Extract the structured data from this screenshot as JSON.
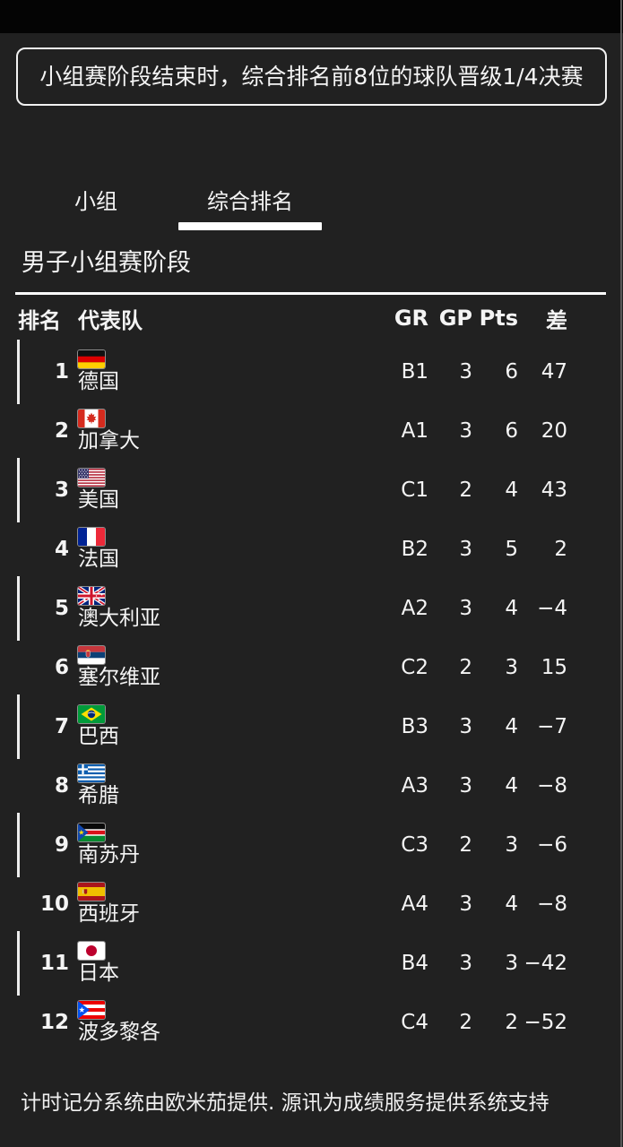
{
  "notice": {
    "text": "小组赛阶段结束时，综合排名前8位的球队晋级1/4决赛"
  },
  "tabs": [
    {
      "label": "小组",
      "active": false
    },
    {
      "label": "综合排名",
      "active": true
    }
  ],
  "section_title": "男子小组赛阶段",
  "table": {
    "headers": {
      "rank": "排名",
      "team": "代表队",
      "gr": "GR",
      "gp": "GP",
      "pts": "Pts",
      "diff": "差"
    },
    "rows": [
      {
        "rank": "1",
        "team": "德国",
        "flag": "germany",
        "gr": "B1",
        "gp": "3",
        "pts": "6",
        "diff": "47",
        "marker": true
      },
      {
        "rank": "2",
        "team": "加拿大",
        "flag": "canada",
        "gr": "A1",
        "gp": "3",
        "pts": "6",
        "diff": "20",
        "marker": false
      },
      {
        "rank": "3",
        "team": "美国",
        "flag": "usa",
        "gr": "C1",
        "gp": "2",
        "pts": "4",
        "diff": "43",
        "marker": true
      },
      {
        "rank": "4",
        "team": "法国",
        "flag": "france",
        "gr": "B2",
        "gp": "3",
        "pts": "5",
        "diff": "2",
        "marker": false
      },
      {
        "rank": "5",
        "team": "澳大利亚",
        "flag": "australia",
        "gr": "A2",
        "gp": "3",
        "pts": "4",
        "diff": "−4",
        "marker": true
      },
      {
        "rank": "6",
        "team": "塞尔维亚",
        "flag": "serbia",
        "gr": "C2",
        "gp": "2",
        "pts": "3",
        "diff": "15",
        "marker": false
      },
      {
        "rank": "7",
        "team": "巴西",
        "flag": "brazil",
        "gr": "B3",
        "gp": "3",
        "pts": "4",
        "diff": "−7",
        "marker": true
      },
      {
        "rank": "8",
        "team": "希腊",
        "flag": "greece",
        "gr": "A3",
        "gp": "3",
        "pts": "4",
        "diff": "−8",
        "marker": false
      },
      {
        "rank": "9",
        "team": "南苏丹",
        "flag": "south-sudan",
        "gr": "C3",
        "gp": "2",
        "pts": "3",
        "diff": "−6",
        "marker": true
      },
      {
        "rank": "10",
        "team": "西班牙",
        "flag": "spain",
        "gr": "A4",
        "gp": "3",
        "pts": "4",
        "diff": "−8",
        "marker": false
      },
      {
        "rank": "11",
        "team": "日本",
        "flag": "japan",
        "gr": "B4",
        "gp": "3",
        "pts": "3",
        "diff": "−42",
        "marker": true
      },
      {
        "rank": "12",
        "team": "波多黎各",
        "flag": "puerto-rico",
        "gr": "C4",
        "gp": "2",
        "pts": "2",
        "diff": "−52",
        "marker": false
      }
    ]
  },
  "footer": {
    "text": "计时记分系统由欧米茄提供. 源讯为成绩服务提供系统支持"
  },
  "colors": {
    "background": "#212121",
    "top_bar": "#040404",
    "text": "#f4f4f4",
    "accent": "#ffffff",
    "scrollbar": "#565656"
  }
}
